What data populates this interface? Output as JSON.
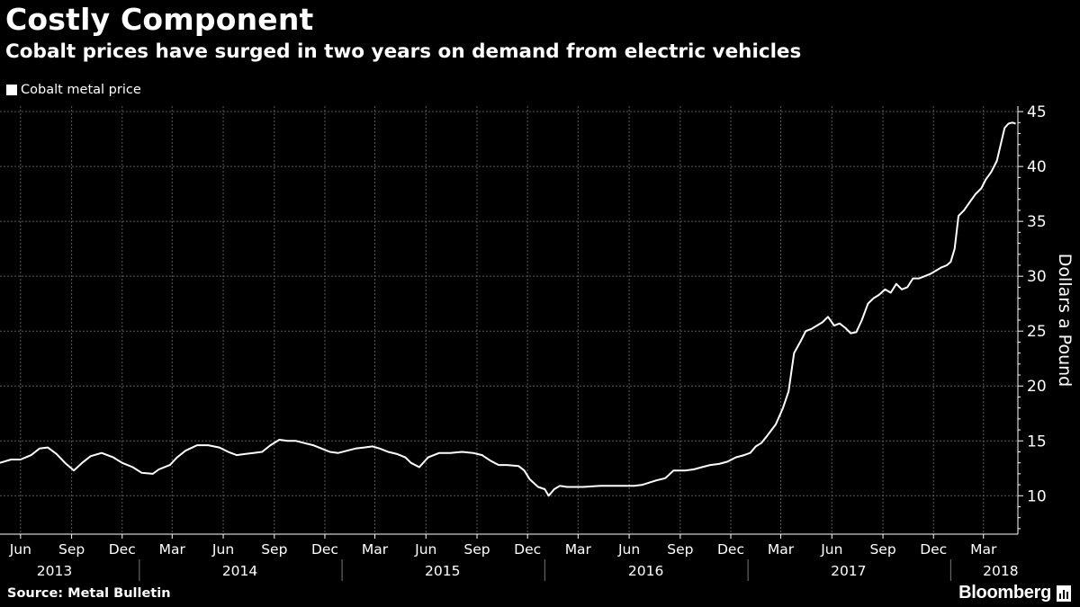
{
  "header": {
    "title": "Costly Component",
    "subtitle": "Cobalt prices have surged in two years on demand from electric vehicles"
  },
  "legend": {
    "label": "Cobalt metal price"
  },
  "footer": {
    "source": "Source: Metal Bulletin",
    "brand": "Bloomberg"
  },
  "colors": {
    "background": "#000000",
    "line": "#ffffff",
    "grid": "#5a5a5a"
  },
  "chart_data": {
    "type": "line",
    "title": "Costly Component",
    "subtitle": "Cobalt prices have surged in two years on demand from electric vehicles",
    "ylabel": "Dollars a Pound",
    "ylim": [
      6.5,
      45.5
    ],
    "yticks": [
      10,
      15,
      20,
      25,
      30,
      35,
      40,
      45
    ],
    "xlim": [
      "2013-04-25",
      "2018-05-02"
    ],
    "x_tick_labels": [
      "Jun",
      "Sep",
      "Dec",
      "Mar",
      "Jun",
      "Sep",
      "Dec",
      "Mar",
      "Jun",
      "Sep",
      "Dec",
      "Mar",
      "Jun",
      "Sep",
      "Dec",
      "Mar",
      "Jun",
      "Sep",
      "Dec",
      "Mar"
    ],
    "x_tick_dates": [
      "2013-06-01",
      "2013-09-01",
      "2013-12-01",
      "2014-03-01",
      "2014-06-01",
      "2014-09-01",
      "2014-12-01",
      "2015-03-01",
      "2015-06-01",
      "2015-09-01",
      "2015-12-01",
      "2016-03-01",
      "2016-06-01",
      "2016-09-01",
      "2016-12-01",
      "2017-03-01",
      "2017-06-01",
      "2017-09-01",
      "2017-12-01",
      "2018-03-01"
    ],
    "year_labels": [
      "2013",
      "2014",
      "2015",
      "2016",
      "2017",
      "2018"
    ],
    "year_label_dates": [
      "2013-08-01",
      "2014-07-01",
      "2015-07-01",
      "2016-07-01",
      "2017-07-01",
      "2018-04-01"
    ],
    "year_separator_dates": [
      "2014-01-01",
      "2015-01-01",
      "2016-01-01",
      "2017-01-01",
      "2018-01-01"
    ],
    "legend": "top-left",
    "grid": true,
    "series": [
      {
        "name": "Cobalt metal price",
        "points": [
          [
            "2013-04-25",
            13.0
          ],
          [
            "2013-05-15",
            13.3
          ],
          [
            "2013-06-01",
            13.3
          ],
          [
            "2013-06-20",
            13.7
          ],
          [
            "2013-07-05",
            14.3
          ],
          [
            "2013-07-20",
            14.4
          ],
          [
            "2013-08-05",
            13.8
          ],
          [
            "2013-08-20",
            13.0
          ],
          [
            "2013-09-05",
            12.3
          ],
          [
            "2013-09-20",
            13.0
          ],
          [
            "2013-10-05",
            13.6
          ],
          [
            "2013-10-25",
            13.9
          ],
          [
            "2013-11-15",
            13.5
          ],
          [
            "2013-12-01",
            13.0
          ],
          [
            "2013-12-20",
            12.6
          ],
          [
            "2014-01-05",
            12.1
          ],
          [
            "2014-01-25",
            12.0
          ],
          [
            "2014-02-05",
            12.4
          ],
          [
            "2014-02-25",
            12.8
          ],
          [
            "2014-03-10",
            13.5
          ],
          [
            "2014-03-25",
            14.1
          ],
          [
            "2014-04-15",
            14.6
          ],
          [
            "2014-05-05",
            14.6
          ],
          [
            "2014-05-25",
            14.4
          ],
          [
            "2014-06-10",
            14.0
          ],
          [
            "2014-06-25",
            13.7
          ],
          [
            "2014-07-10",
            13.8
          ],
          [
            "2014-07-25",
            13.9
          ],
          [
            "2014-08-10",
            14.0
          ],
          [
            "2014-08-25",
            14.6
          ],
          [
            "2014-09-10",
            15.1
          ],
          [
            "2014-09-25",
            15.0
          ],
          [
            "2014-10-10",
            15.0
          ],
          [
            "2014-10-25",
            14.8
          ],
          [
            "2014-11-10",
            14.6
          ],
          [
            "2014-11-25",
            14.3
          ],
          [
            "2014-12-10",
            14.0
          ],
          [
            "2014-12-25",
            13.9
          ],
          [
            "2015-01-10",
            14.1
          ],
          [
            "2015-01-25",
            14.3
          ],
          [
            "2015-02-10",
            14.4
          ],
          [
            "2015-02-25",
            14.5
          ],
          [
            "2015-03-10",
            14.3
          ],
          [
            "2015-03-25",
            14.0
          ],
          [
            "2015-04-10",
            13.8
          ],
          [
            "2015-04-25",
            13.5
          ],
          [
            "2015-05-05",
            13.0
          ],
          [
            "2015-05-20",
            12.6
          ],
          [
            "2015-06-05",
            13.5
          ],
          [
            "2015-06-25",
            13.9
          ],
          [
            "2015-07-15",
            13.9
          ],
          [
            "2015-08-05",
            14.0
          ],
          [
            "2015-08-25",
            13.9
          ],
          [
            "2015-09-10",
            13.7
          ],
          [
            "2015-09-25",
            13.2
          ],
          [
            "2015-10-10",
            12.8
          ],
          [
            "2015-10-25",
            12.8
          ],
          [
            "2015-11-15",
            12.7
          ],
          [
            "2015-11-25",
            12.3
          ],
          [
            "2015-12-05",
            11.5
          ],
          [
            "2015-12-20",
            10.8
          ],
          [
            "2016-01-01",
            10.6
          ],
          [
            "2016-01-08",
            10.0
          ],
          [
            "2016-01-18",
            10.6
          ],
          [
            "2016-01-28",
            10.9
          ],
          [
            "2016-02-10",
            10.8
          ],
          [
            "2016-03-10",
            10.8
          ],
          [
            "2016-04-10",
            10.9
          ],
          [
            "2016-05-10",
            10.9
          ],
          [
            "2016-06-10",
            10.9
          ],
          [
            "2016-06-25",
            11.0
          ],
          [
            "2016-07-20",
            11.4
          ],
          [
            "2016-08-05",
            11.6
          ],
          [
            "2016-08-20",
            12.3
          ],
          [
            "2016-09-10",
            12.3
          ],
          [
            "2016-09-25",
            12.4
          ],
          [
            "2016-10-10",
            12.6
          ],
          [
            "2016-10-25",
            12.8
          ],
          [
            "2016-11-10",
            12.9
          ],
          [
            "2016-11-25",
            13.1
          ],
          [
            "2016-12-10",
            13.5
          ],
          [
            "2016-12-25",
            13.7
          ],
          [
            "2017-01-05",
            13.9
          ],
          [
            "2017-01-15",
            14.5
          ],
          [
            "2017-01-25",
            14.8
          ],
          [
            "2017-02-05",
            15.5
          ],
          [
            "2017-02-20",
            16.5
          ],
          [
            "2017-03-05",
            18.0
          ],
          [
            "2017-03-15",
            19.5
          ],
          [
            "2017-03-25",
            23.0
          ],
          [
            "2017-04-05",
            24.0
          ],
          [
            "2017-04-15",
            25.0
          ],
          [
            "2017-04-25",
            25.2
          ],
          [
            "2017-05-05",
            25.5
          ],
          [
            "2017-05-15",
            25.8
          ],
          [
            "2017-05-25",
            26.3
          ],
          [
            "2017-06-05",
            25.5
          ],
          [
            "2017-06-15",
            25.7
          ],
          [
            "2017-06-25",
            25.3
          ],
          [
            "2017-07-05",
            24.8
          ],
          [
            "2017-07-15",
            24.9
          ],
          [
            "2017-07-25",
            26.0
          ],
          [
            "2017-08-05",
            27.5
          ],
          [
            "2017-08-15",
            28.0
          ],
          [
            "2017-08-25",
            28.3
          ],
          [
            "2017-09-05",
            28.8
          ],
          [
            "2017-09-15",
            28.5
          ],
          [
            "2017-09-25",
            29.3
          ],
          [
            "2017-10-05",
            28.8
          ],
          [
            "2017-10-15",
            29.0
          ],
          [
            "2017-10-25",
            29.8
          ],
          [
            "2017-11-05",
            29.8
          ],
          [
            "2017-11-15",
            30.0
          ],
          [
            "2017-11-25",
            30.2
          ],
          [
            "2017-12-05",
            30.5
          ],
          [
            "2017-12-15",
            30.8
          ],
          [
            "2017-12-25",
            31.0
          ],
          [
            "2018-01-01",
            31.3
          ],
          [
            "2018-01-08",
            32.5
          ],
          [
            "2018-01-15",
            35.5
          ],
          [
            "2018-01-25",
            36.0
          ],
          [
            "2018-02-05",
            36.8
          ],
          [
            "2018-02-15",
            37.5
          ],
          [
            "2018-02-25",
            38.0
          ],
          [
            "2018-03-05",
            38.8
          ],
          [
            "2018-03-15",
            39.5
          ],
          [
            "2018-03-25",
            40.5
          ],
          [
            "2018-04-01",
            42.0
          ],
          [
            "2018-04-08",
            43.5
          ],
          [
            "2018-04-15",
            43.9
          ],
          [
            "2018-04-22",
            44.0
          ],
          [
            "2018-04-28",
            43.9
          ]
        ]
      }
    ]
  }
}
